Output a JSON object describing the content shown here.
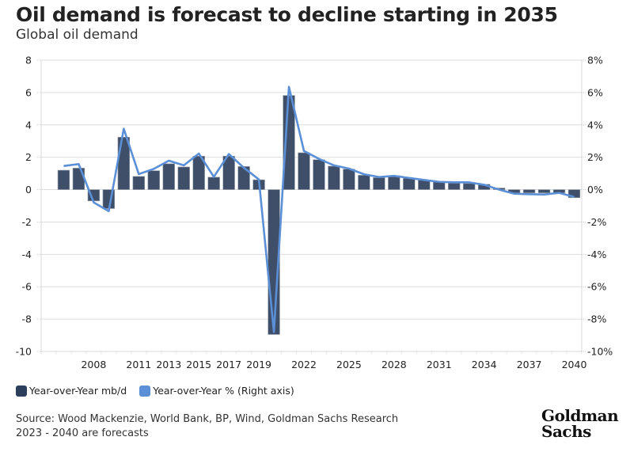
{
  "header": {
    "title": "Oil demand is forecast to decline starting in 2035",
    "subtitle": "Global oil demand"
  },
  "legend": {
    "items": [
      {
        "label": "Year-over-Year mb/d",
        "color": "#2b3f5c"
      },
      {
        "label": "Year-over-Year % (Right axis)",
        "color": "#5b8fd6"
      }
    ]
  },
  "footer": {
    "source": "Source: Wood Mackenzie, World Bank, BP, Wind, Goldman Sachs Research",
    "note": "2023 - 2040 are forecasts",
    "logo_line1": "Goldman",
    "logo_line2": "Sachs"
  },
  "chart_data": {
    "type": "bar",
    "title": "Oil demand is forecast to decline starting in 2035",
    "subtitle": "Global oil demand",
    "xlabel": "",
    "ylabel": "",
    "categories": [
      "2005",
      "2006",
      "2007",
      "2008",
      "2009",
      "2010",
      "2011",
      "2012",
      "2013",
      "2014",
      "2015",
      "2016",
      "2017",
      "2018",
      "2019",
      "2020",
      "2021",
      "2022",
      "2023",
      "2024",
      "2025",
      "2026",
      "2027",
      "2028",
      "2029",
      "2030",
      "2031",
      "2032",
      "2033",
      "2034",
      "2035",
      "2036",
      "2037",
      "2038",
      "2039",
      "2040"
    ],
    "x_tick_labels": [
      "2008",
      "2011",
      "2013",
      "2015",
      "2017",
      "2019",
      "2022",
      "2025",
      "2028",
      "2031",
      "2034",
      "2037",
      "2040"
    ],
    "ylim": [
      -10,
      8
    ],
    "y_ticks": [
      "8",
      "6",
      "4",
      "2",
      "0",
      "-2",
      "-4",
      "-6",
      "-8",
      "-10"
    ],
    "y2lim": [
      -10,
      8
    ],
    "y2_ticks": [
      "8%",
      "6%",
      "4%",
      "2%",
      "0%",
      "-2%",
      "-4%",
      "-6%",
      "-8%",
      "-10%"
    ],
    "grid": true,
    "legend_position": "bottom-left",
    "series": [
      {
        "name": "Year-over-Year mb/d",
        "type": "bar",
        "axis": "left",
        "color": "#3f4f69",
        "values": [
          null,
          1.2,
          1.33,
          -0.7,
          -1.17,
          3.24,
          0.82,
          1.17,
          1.6,
          1.4,
          2.07,
          0.77,
          2.07,
          1.43,
          0.61,
          -8.95,
          5.82,
          2.28,
          1.85,
          1.45,
          1.27,
          0.89,
          0.74,
          0.86,
          0.7,
          0.58,
          0.47,
          0.4,
          0.38,
          0.33,
          0.1,
          -0.2,
          -0.2,
          -0.2,
          -0.2,
          -0.5
        ]
      },
      {
        "name": "Year-over-Year % (Right axis)",
        "type": "line",
        "axis": "right",
        "color": "#5b8fd6",
        "values": [
          null,
          1.46,
          1.58,
          -0.79,
          -1.33,
          3.76,
          0.96,
          1.28,
          1.79,
          1.5,
          2.23,
          0.79,
          2.2,
          1.35,
          0.63,
          -8.8,
          6.35,
          2.39,
          1.9,
          1.5,
          1.3,
          0.95,
          0.78,
          0.85,
          0.72,
          0.6,
          0.48,
          0.45,
          0.45,
          0.3,
          0.0,
          -0.25,
          -0.28,
          -0.3,
          -0.2,
          -0.45
        ]
      }
    ]
  }
}
